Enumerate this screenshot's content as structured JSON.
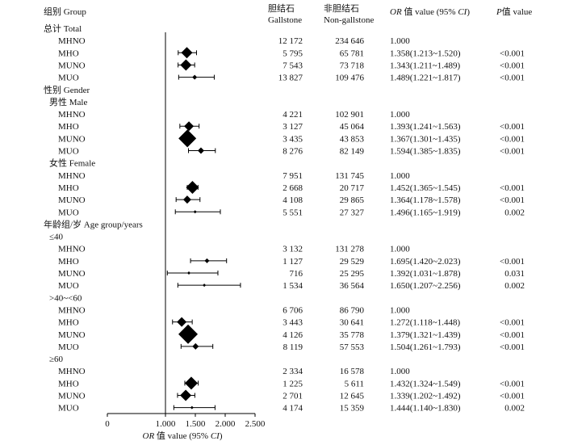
{
  "header": {
    "group": "组别 Group",
    "gallstone_cn": "胆结石",
    "gallstone_en": "Gallstone",
    "nongallstone_cn": "非胆结石",
    "nongallstone_en": "Non-gallstone",
    "or_prefix": "OR",
    "or_middle": " 值 value (95% ",
    "or_ci": "CI",
    "or_suffix": ")",
    "p_prefix": "P",
    "p_suffix": "值 value"
  },
  "axis": {
    "ticks": [
      0,
      1.0,
      1.5,
      2.0,
      2.5
    ],
    "tick_labels": [
      "0",
      "1.000",
      "1.500",
      "2.000",
      "2.500"
    ],
    "reference": 1.0,
    "label_prefix": "OR",
    "label_middle": " 值 value (95% ",
    "label_ci": "CI",
    "label_suffix": ")"
  },
  "chart_data": {
    "type": "forest",
    "xlim": [
      0,
      2.5
    ],
    "reference_line": 1.0,
    "rows": [
      {
        "kind": "section",
        "label": "总计 Total"
      },
      {
        "kind": "data",
        "label": "MHNO",
        "gallstone": "12 172",
        "non_gallstone": "234 646",
        "or_text": "1.000",
        "p": ""
      },
      {
        "kind": "data",
        "label": "MHO",
        "gallstone": "5 795",
        "non_gallstone": "65 781",
        "or_text": "1.358(1.213~1.520)",
        "p": "<0.001",
        "or": 1.358,
        "lo": 1.213,
        "hi": 1.52,
        "marker": 7
      },
      {
        "kind": "data",
        "label": "MUNO",
        "gallstone": "7 543",
        "non_gallstone": "73 718",
        "or_text": "1.343(1.211~1.489)",
        "p": "<0.001",
        "or": 1.343,
        "lo": 1.211,
        "hi": 1.489,
        "marker": 7
      },
      {
        "kind": "data",
        "label": "MUO",
        "gallstone": "13 827",
        "non_gallstone": "109 476",
        "or_text": "1.489(1.221~1.817)",
        "p": "<0.001",
        "or": 1.489,
        "lo": 1.221,
        "hi": 1.817,
        "marker": 3
      },
      {
        "kind": "section",
        "label": "性别 Gender"
      },
      {
        "kind": "subsection",
        "label": "男性 Male"
      },
      {
        "kind": "data",
        "label": "MHNO",
        "gallstone": "4 221",
        "non_gallstone": "102 901",
        "or_text": "1.000",
        "p": ""
      },
      {
        "kind": "data",
        "label": "MHO",
        "gallstone": "3 127",
        "non_gallstone": "45 064",
        "or_text": "1.393(1.241~1.563)",
        "p": "<0.001",
        "or": 1.393,
        "lo": 1.241,
        "hi": 1.563,
        "marker": 6
      },
      {
        "kind": "data",
        "label": "MUNO",
        "gallstone": "3 435",
        "non_gallstone": "43 853",
        "or_text": "1.367(1.301~1.435)",
        "p": "<0.001",
        "or": 1.367,
        "lo": 1.301,
        "hi": 1.435,
        "marker": 11
      },
      {
        "kind": "data",
        "label": "MUO",
        "gallstone": "8 276",
        "non_gallstone": "82 149",
        "or_text": "1.594(1.385~1.835)",
        "p": "<0.001",
        "or": 1.594,
        "lo": 1.385,
        "hi": 1.835,
        "marker": 4
      },
      {
        "kind": "subsection",
        "label": "女性 Female"
      },
      {
        "kind": "data",
        "label": "MHNO",
        "gallstone": "7 951",
        "non_gallstone": "131 745",
        "or_text": "1.000",
        "p": ""
      },
      {
        "kind": "data",
        "label": "MHO",
        "gallstone": "2 668",
        "non_gallstone": "20 717",
        "or_text": "1.452(1.365~1.545)",
        "p": "<0.001",
        "or": 1.452,
        "lo": 1.365,
        "hi": 1.545,
        "marker": 8
      },
      {
        "kind": "data",
        "label": "MUNO",
        "gallstone": "4 108",
        "non_gallstone": "29 865",
        "or_text": "1.364(1.178~1.578)",
        "p": "<0.001",
        "or": 1.364,
        "lo": 1.178,
        "hi": 1.578,
        "marker": 5
      },
      {
        "kind": "data",
        "label": "MUO",
        "gallstone": "5 551",
        "non_gallstone": "27 327",
        "or_text": "1.496(1.165~1.919)",
        "p": "0.002",
        "or": 1.496,
        "lo": 1.165,
        "hi": 1.919,
        "marker": 2
      },
      {
        "kind": "section",
        "label": "年龄组/岁 Age group/years"
      },
      {
        "kind": "subsection",
        "label": "≤40"
      },
      {
        "kind": "data",
        "label": "MHNO",
        "gallstone": "3 132",
        "non_gallstone": "131 278",
        "or_text": "1.000",
        "p": ""
      },
      {
        "kind": "data",
        "label": "MHO",
        "gallstone": "1 127",
        "non_gallstone": "29 529",
        "or_text": "1.695(1.420~2.023)",
        "p": "<0.001",
        "or": 1.695,
        "lo": 1.42,
        "hi": 2.023,
        "marker": 3
      },
      {
        "kind": "data",
        "label": "MUNO",
        "gallstone": "716",
        "non_gallstone": "25 295",
        "or_text": "1.392(1.031~1.878)",
        "p": "0.031",
        "or": 1.392,
        "lo": 1.031,
        "hi": 1.878,
        "marker": 2
      },
      {
        "kind": "data",
        "label": "MUO",
        "gallstone": "1 534",
        "non_gallstone": "36 564",
        "or_text": "1.650(1.207~2.256)",
        "p": "0.002",
        "or": 1.65,
        "lo": 1.207,
        "hi": 2.256,
        "marker": 2
      },
      {
        "kind": "subsection",
        "label": ">40~<60"
      },
      {
        "kind": "data",
        "label": "MHNO",
        "gallstone": "6 706",
        "non_gallstone": "86 790",
        "or_text": "1.000",
        "p": ""
      },
      {
        "kind": "data",
        "label": "MHO",
        "gallstone": "3 443",
        "non_gallstone": "30 641",
        "or_text": "1.272(1.118~1.448)",
        "p": "<0.001",
        "or": 1.272,
        "lo": 1.118,
        "hi": 1.448,
        "marker": 6
      },
      {
        "kind": "data",
        "label": "MUNO",
        "gallstone": "4 126",
        "non_gallstone": "35 778",
        "or_text": "1.379(1.321~1.439)",
        "p": "<0.001",
        "or": 1.379,
        "lo": 1.321,
        "hi": 1.439,
        "marker": 12
      },
      {
        "kind": "data",
        "label": "MUO",
        "gallstone": "8 119",
        "non_gallstone": "57 553",
        "or_text": "1.504(1.261~1.793)",
        "p": "<0.001",
        "or": 1.504,
        "lo": 1.261,
        "hi": 1.793,
        "marker": 4
      },
      {
        "kind": "subsection",
        "label": "≥60"
      },
      {
        "kind": "data",
        "label": "MHNO",
        "gallstone": "2 334",
        "non_gallstone": "16 578",
        "or_text": "1.000",
        "p": ""
      },
      {
        "kind": "data",
        "label": "MHO",
        "gallstone": "1 225",
        "non_gallstone": "5 611",
        "or_text": "1.432(1.324~1.549)",
        "p": "<0.001",
        "or": 1.432,
        "lo": 1.324,
        "hi": 1.549,
        "marker": 8
      },
      {
        "kind": "data",
        "label": "MUNO",
        "gallstone": "2 701",
        "non_gallstone": "12 645",
        "or_text": "1.339(1.202~1.492)",
        "p": "<0.001",
        "or": 1.339,
        "lo": 1.202,
        "hi": 1.492,
        "marker": 7
      },
      {
        "kind": "data",
        "label": "MUO",
        "gallstone": "4 174",
        "non_gallstone": "15 359",
        "or_text": "1.444(1.140~1.830)",
        "p": "0.002",
        "or": 1.444,
        "lo": 1.14,
        "hi": 1.83,
        "marker": 2
      }
    ]
  }
}
